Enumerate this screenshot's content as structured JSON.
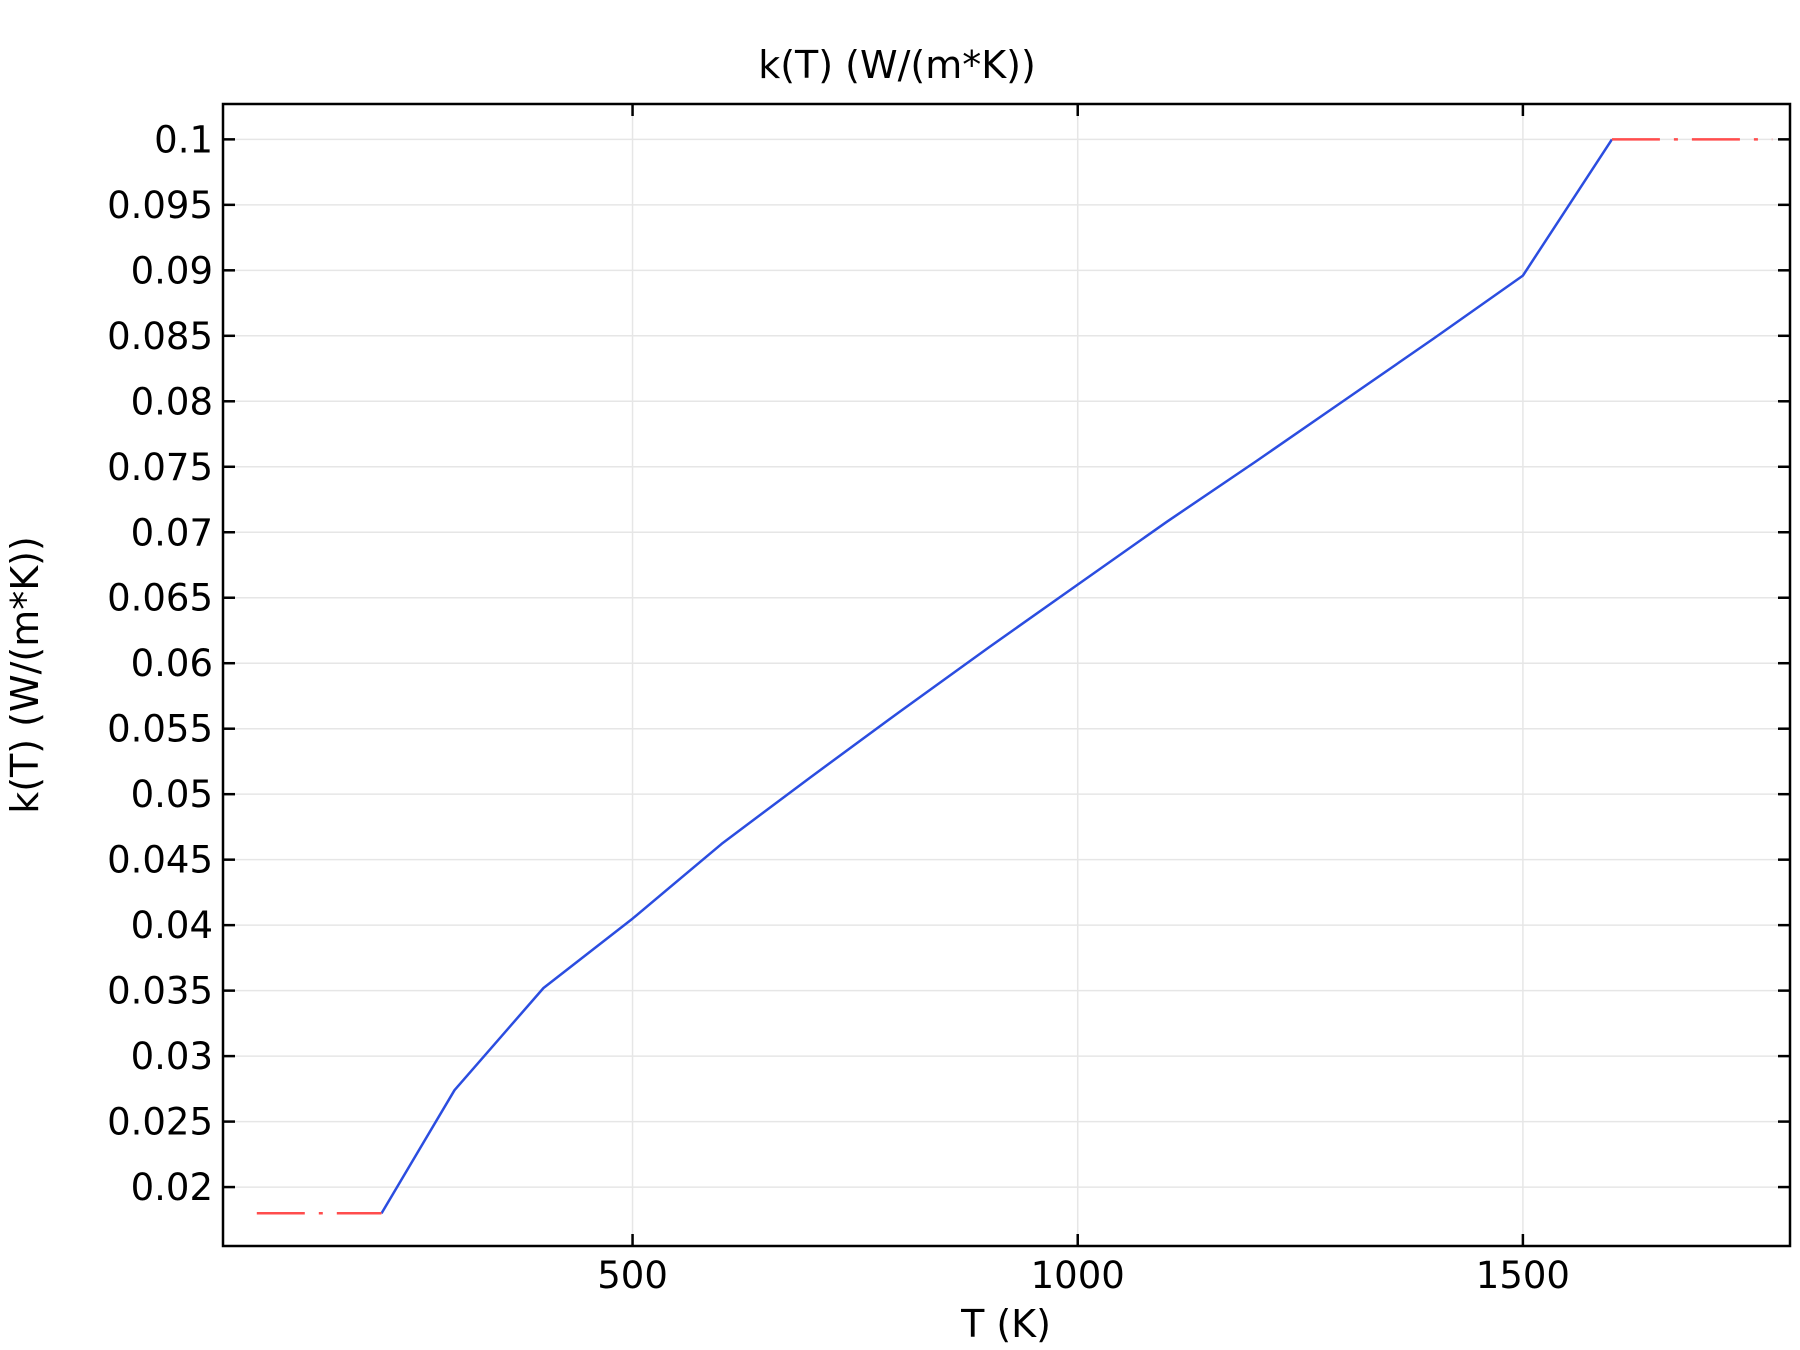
{
  "chart_data": {
    "type": "line",
    "title": "k(T) (W/(m*K))",
    "xlabel": "T (K)",
    "ylabel": "k(T) (W/(m*K))",
    "xlim": [
      40,
      1800
    ],
    "ylim": [
      0.0155,
      0.1027
    ],
    "grid": true,
    "x_ticks": [
      500,
      1000,
      1500
    ],
    "x_tick_labels": [
      "500",
      "1000",
      "1500"
    ],
    "y_ticks": [
      0.02,
      0.025,
      0.03,
      0.035,
      0.04,
      0.045,
      0.05,
      0.055,
      0.06,
      0.065,
      0.07,
      0.075,
      0.08,
      0.085,
      0.09,
      0.095,
      0.1
    ],
    "y_tick_labels": [
      "0.02",
      "0.025",
      "0.03",
      "0.035",
      "0.04",
      "0.045",
      "0.05",
      "0.055",
      "0.06",
      "0.065",
      "0.07",
      "0.075",
      "0.08",
      "0.085",
      "0.09",
      "0.095",
      "0.1"
    ],
    "series": [
      {
        "color": "#2b4de0",
        "style": "solid",
        "x": [
          218,
          300,
          400,
          500,
          600,
          700,
          800,
          900,
          1000,
          1100,
          1200,
          1300,
          1400,
          1500,
          1600
        ],
        "y": [
          0.018,
          0.0274,
          0.0352,
          0.0405,
          0.0462,
          0.0513,
          0.0563,
          0.0612,
          0.066,
          0.0708,
          0.0754,
          0.0801,
          0.0848,
          0.0896,
          0.1
        ]
      },
      {
        "color": "#ff4d4d",
        "style": "dashed",
        "x": [
          78,
          218
        ],
        "y": [
          0.018,
          0.018
        ]
      },
      {
        "color": "#ff4d4d",
        "style": "dashed",
        "x": [
          1600,
          1780
        ],
        "y": [
          0.1,
          0.1
        ]
      }
    ]
  }
}
